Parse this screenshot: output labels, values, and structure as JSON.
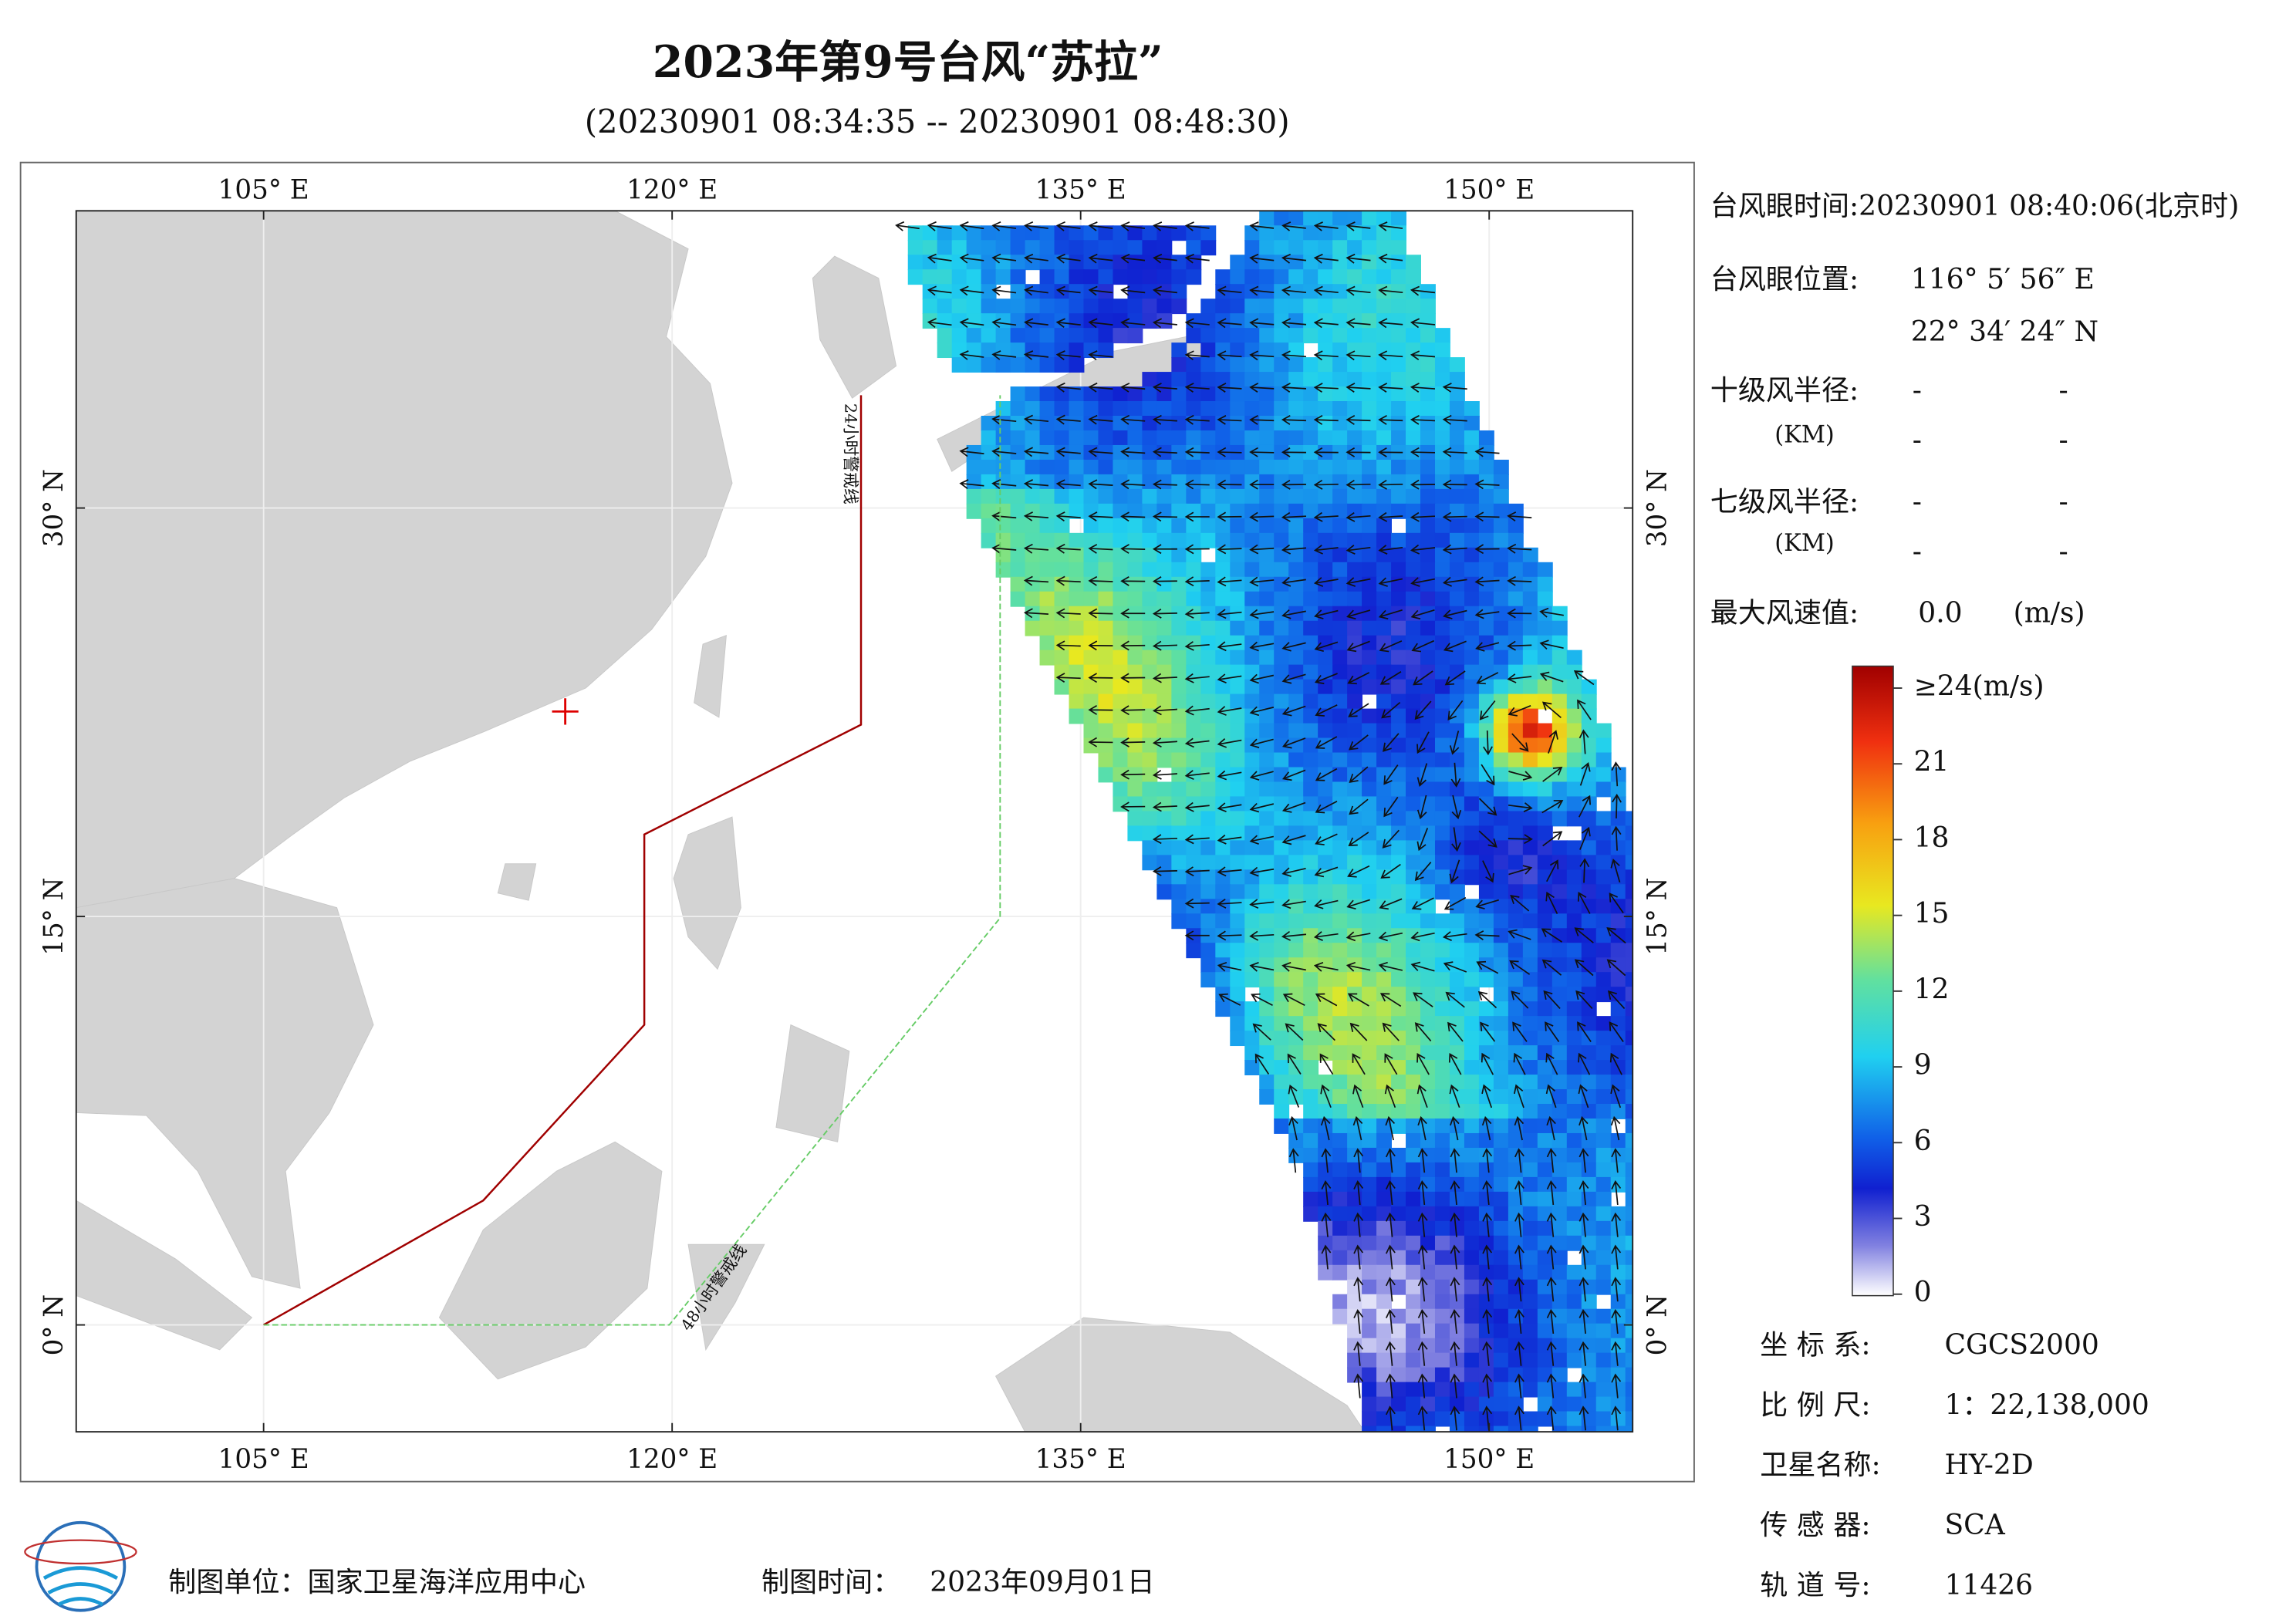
{
  "header": {
    "title": "2023年第9号台风“苏拉”",
    "subtitle": "(20230901 08:34:35 -- 20230901 08:48:30)"
  },
  "map": {
    "lon_ticks": [
      {
        "value": 105,
        "label": "105° E"
      },
      {
        "value": 120,
        "label": "120° E"
      },
      {
        "value": 135,
        "label": "135° E"
      },
      {
        "value": 150,
        "label": "150° E"
      }
    ],
    "lat_ticks": [
      {
        "value": 0,
        "label": "0° N"
      },
      {
        "value": 15,
        "label": "15° N"
      },
      {
        "value": 30,
        "label": "30° N"
      }
    ],
    "warning_24h": "24小时警戒线",
    "warning_48h": "48小时警戒线"
  },
  "eye_info": {
    "time": "台风眼时间:20230901 08:40:06(北京时)",
    "position_label": "台风眼位置:",
    "position_lon": "116° 5′ 56″ E",
    "position_lat": "22° 34′ 24″ N",
    "radius10_label": "十级风半径:",
    "radius10_unit": "(KM)",
    "radius10_values": [
      "-",
      "-",
      "-",
      "-"
    ],
    "radius7_label": "七级风半径:",
    "radius7_unit": "(KM)",
    "radius7_values": [
      "-",
      "-",
      "-",
      "-"
    ],
    "max_wind_label": "最大风速值:",
    "max_wind_value": "0.0",
    "max_wind_unit": "(m/s)"
  },
  "colorbar": {
    "ticks": [
      {
        "value": 24,
        "label": "≥24(m/s)"
      },
      21,
      18,
      15,
      12,
      9,
      6,
      3,
      0
    ]
  },
  "meta": {
    "rows": [
      [
        "坐 标 系:",
        "CGCS2000"
      ],
      [
        "比 例 尺:",
        "1：22,138,000"
      ],
      [
        "卫星名称:",
        "HY-2D"
      ],
      [
        "传 感 器:",
        "SCA"
      ],
      [
        "轨 道 号:",
        "11426"
      ]
    ]
  },
  "footer": {
    "unit": "制图单位：国家卫星海洋应用中心",
    "date_label": "制图时间：",
    "date": "2023年09月01日"
  }
}
